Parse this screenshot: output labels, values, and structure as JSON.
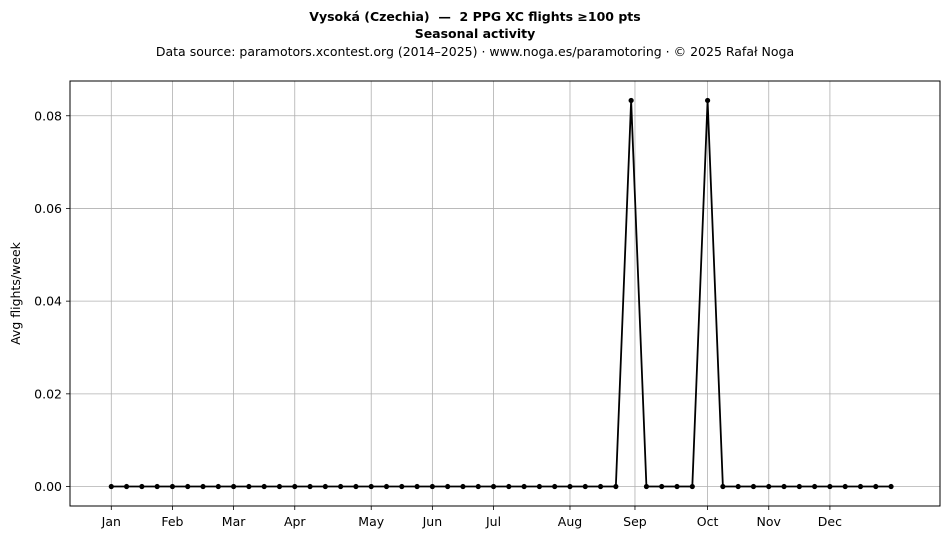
{
  "header": {
    "title": "Vysoká (Czechia)  —  2 PPG XC flights ≥100 pts",
    "subtitle": "Seasonal activity",
    "source": "Data source: paramotors.xcontest.org (2014–2025)  ·  www.noga.es/paramotoring  ·  © 2025 Rafał Noga"
  },
  "chart_data": {
    "type": "line",
    "title": "Vysoká (Czechia)  —  2 PPG XC flights ≥100 pts",
    "subtitle": "Seasonal activity",
    "xlabel": "",
    "ylabel": "Avg flights/week",
    "x_unit": "week of year",
    "x": [
      1,
      2,
      3,
      4,
      5,
      6,
      7,
      8,
      9,
      10,
      11,
      12,
      13,
      14,
      15,
      16,
      17,
      18,
      19,
      20,
      21,
      22,
      23,
      24,
      25,
      26,
      27,
      28,
      29,
      30,
      31,
      32,
      33,
      34,
      35,
      36,
      37,
      38,
      39,
      40,
      41,
      42,
      43,
      44,
      45,
      46,
      47,
      48,
      49,
      50,
      51,
      52
    ],
    "series": [
      {
        "values": [
          0,
          0,
          0,
          0,
          0,
          0,
          0,
          0,
          0,
          0,
          0,
          0,
          0,
          0,
          0,
          0,
          0,
          0,
          0,
          0,
          0,
          0,
          0,
          0,
          0,
          0,
          0,
          0,
          0,
          0,
          0,
          0,
          0,
          0,
          0.0833,
          0,
          0,
          0,
          0,
          0.0833,
          0,
          0,
          0,
          0,
          0,
          0,
          0,
          0,
          0,
          0,
          0,
          0
        ],
        "color": "#000000"
      }
    ],
    "month_ticks": [
      {
        "label": "Jan",
        "week": 1
      },
      {
        "label": "Feb",
        "week": 5
      },
      {
        "label": "Mar",
        "week": 9
      },
      {
        "label": "Apr",
        "week": 13
      },
      {
        "label": "May",
        "week": 18
      },
      {
        "label": "Jun",
        "week": 22
      },
      {
        "label": "Jul",
        "week": 26
      },
      {
        "label": "Aug",
        "week": 31
      },
      {
        "label": "Sep",
        "week": 35.25
      },
      {
        "label": "Oct",
        "week": 40
      },
      {
        "label": "Nov",
        "week": 44
      },
      {
        "label": "Dec",
        "week": 48
      }
    ],
    "yticks": [
      0,
      0.02,
      0.04,
      0.06,
      0.08
    ],
    "ytick_labels": [
      "0.00",
      "0.02",
      "0.04",
      "0.06",
      "0.08"
    ],
    "xlim": [
      -1.7,
      55.2
    ],
    "ylim": [
      -0.0042,
      0.0875
    ],
    "grid": true,
    "line_color": "#000000",
    "grid_color": "#b0b0b0"
  }
}
